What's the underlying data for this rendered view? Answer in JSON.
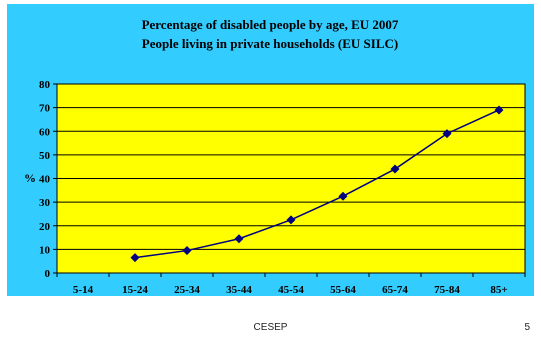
{
  "colors": {
    "panel": "#33CCFF",
    "plot_area": "#FFFF00",
    "line": "#000080",
    "marker": "#000080",
    "gridline": "#000000"
  },
  "chart_data": {
    "type": "line",
    "title": "Percentage of disabled people by age, EU 2007",
    "subtitle": "People living in private households (EU SILC)",
    "xlabel": "",
    "ylabel": "%",
    "categories": [
      "5-14",
      "15-24",
      "25-34",
      "35-44",
      "45-54",
      "55-64",
      "65-74",
      "75-84",
      "85+"
    ],
    "series": [
      {
        "values": [
          null,
          6.5,
          9.5,
          14.5,
          22.5,
          32.5,
          44,
          59,
          69
        ]
      }
    ],
    "ylim": [
      0,
      80
    ],
    "yticks": [
      0,
      10,
      20,
      30,
      40,
      50,
      60,
      70,
      80
    ],
    "grid": true,
    "legend": "none"
  },
  "footer": {
    "center_text": "CESEP",
    "page_number": "5"
  }
}
